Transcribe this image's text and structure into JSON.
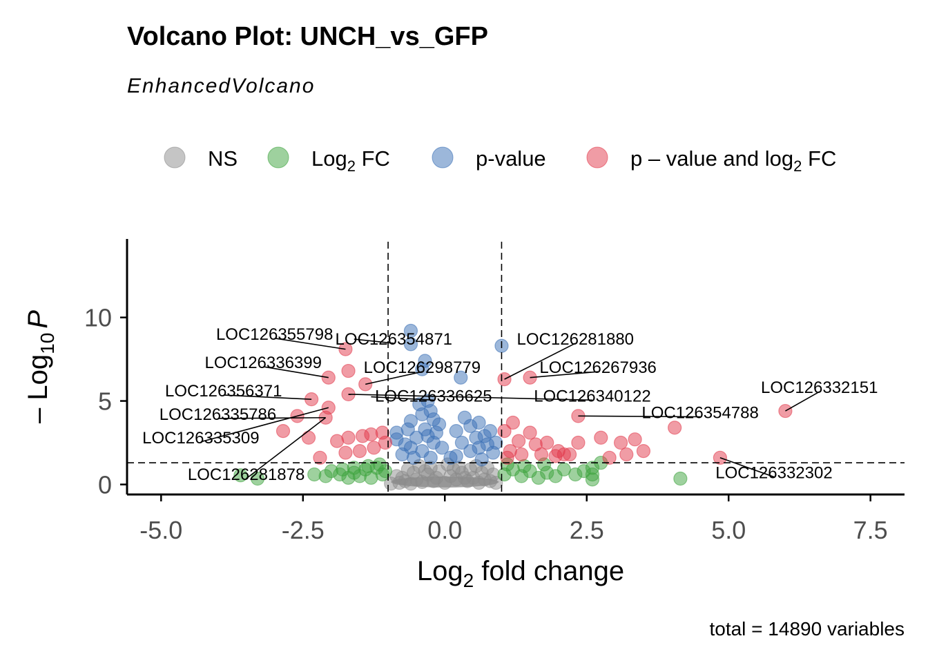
{
  "chart_data": {
    "type": "scatter",
    "title": "Volcano Plot: UNCH_vs_GFP",
    "subtitle": "EnhancedVolcano",
    "caption": "total = 14890 variables",
    "xlabel_main": "Log",
    "xlabel_sub": "2",
    "xlabel_rest": " fold change",
    "ylabel_pre": "– Log",
    "ylabel_sub": "10",
    "ylabel_italic": "P",
    "xlim": [
      -5.6,
      8.1
    ],
    "ylim": [
      -0.6,
      14.7
    ],
    "x_ticks": [
      -5.0,
      -2.5,
      0.0,
      2.5,
      5.0,
      7.5
    ],
    "x_tick_labels": [
      "-5.0",
      "-2.5",
      "0.0",
      "2.5",
      "5.0",
      "7.5"
    ],
    "y_ticks": [
      0,
      5,
      10
    ],
    "y_tick_labels": [
      "0",
      "5",
      "10"
    ],
    "fc_cutoff": 1.0,
    "p_cutoff_log10": 1.3,
    "legend_position": "top",
    "colors": {
      "NS": "#8c8c8c",
      "FC": "#3da33d",
      "P": "#3a6fb5",
      "FC_P": "#e2394b"
    },
    "legend": [
      {
        "key": "NS",
        "label": "NS"
      },
      {
        "key": "FC",
        "label": "Log",
        "sub": "2",
        "rest": " FC"
      },
      {
        "key": "P",
        "label": "p-value"
      },
      {
        "key": "FC_P",
        "label": "p – value and log",
        "sub": "2",
        "rest": " FC"
      }
    ],
    "series": {
      "NS": [
        [
          -0.95,
          0.05
        ],
        [
          -0.8,
          0.1
        ],
        [
          -0.7,
          0.2
        ],
        [
          -0.6,
          0.05
        ],
        [
          -0.5,
          0.3
        ],
        [
          -0.4,
          0.15
        ],
        [
          -0.3,
          0.6
        ],
        [
          -0.2,
          0.2
        ],
        [
          -0.1,
          0.8
        ],
        [
          0.0,
          0.1
        ],
        [
          0.1,
          0.5
        ],
        [
          0.2,
          0.3
        ],
        [
          0.3,
          0.7
        ],
        [
          0.4,
          0.2
        ],
        [
          0.5,
          0.4
        ],
        [
          0.6,
          0.1
        ],
        [
          0.7,
          0.3
        ],
        [
          0.8,
          0.2
        ],
        [
          0.9,
          0.1
        ],
        [
          -0.85,
          0.5
        ],
        [
          -0.65,
          0.9
        ],
        [
          -0.45,
          1.1
        ],
        [
          -0.25,
          1.0
        ],
        [
          0.05,
          1.2
        ],
        [
          0.25,
          1.0
        ],
        [
          0.45,
          0.9
        ],
        [
          0.65,
          0.7
        ],
        [
          0.85,
          0.6
        ],
        [
          -0.55,
          0.7
        ],
        [
          0.35,
          0.4
        ],
        [
          -0.15,
          0.4
        ],
        [
          0.15,
          0.9
        ],
        [
          -0.35,
          0.8
        ],
        [
          0.55,
          1.1
        ],
        [
          0.75,
          1.0
        ],
        [
          -0.75,
          0.4
        ]
      ],
      "FC": [
        [
          -3.6,
          0.55
        ],
        [
          -3.3,
          0.35
        ],
        [
          -2.1,
          0.5
        ],
        [
          -2.0,
          0.8
        ],
        [
          -1.85,
          0.6
        ],
        [
          -1.7,
          0.4
        ],
        [
          -1.6,
          0.7
        ],
        [
          -1.5,
          0.5
        ],
        [
          -1.4,
          0.9
        ],
        [
          -1.3,
          0.4
        ],
        [
          -1.2,
          1.0
        ],
        [
          -1.1,
          0.6
        ],
        [
          -1.05,
          0.8
        ],
        [
          -1.15,
          1.2
        ],
        [
          -1.35,
          1.1
        ],
        [
          -1.6,
          1.0
        ],
        [
          -1.8,
          0.9
        ],
        [
          -2.3,
          0.6
        ],
        [
          1.05,
          0.6
        ],
        [
          1.2,
          0.9
        ],
        [
          1.35,
          0.5
        ],
        [
          1.5,
          0.8
        ],
        [
          1.65,
          0.4
        ],
        [
          1.8,
          0.7
        ],
        [
          1.95,
          0.5
        ],
        [
          2.1,
          0.9
        ],
        [
          2.3,
          0.6
        ],
        [
          2.45,
          0.8
        ],
        [
          2.6,
          0.3
        ],
        [
          2.6,
          0.6
        ],
        [
          2.6,
          1.0
        ],
        [
          2.75,
          1.3
        ],
        [
          1.1,
          1.2
        ],
        [
          1.4,
          1.1
        ],
        [
          1.75,
          1.2
        ],
        [
          4.15,
          0.35
        ]
      ],
      "P": [
        [
          -0.6,
          8.4
        ],
        [
          -0.6,
          9.2
        ],
        [
          -0.35,
          7.4
        ],
        [
          -0.4,
          6.9
        ],
        [
          0.28,
          6.4
        ],
        [
          1.0,
          8.3
        ],
        [
          -0.85,
          3.1
        ],
        [
          -0.85,
          2.7
        ],
        [
          -0.6,
          3.8
        ],
        [
          -0.4,
          4.2
        ],
        [
          -0.3,
          5.0
        ],
        [
          -0.2,
          3.9
        ],
        [
          -0.45,
          4.8
        ],
        [
          -0.35,
          3.3
        ],
        [
          -0.2,
          2.5
        ],
        [
          -0.7,
          2.4
        ],
        [
          -0.6,
          2.2
        ],
        [
          -0.5,
          2.8
        ],
        [
          -0.4,
          2.0
        ],
        [
          -0.3,
          2.9
        ],
        [
          -0.15,
          3.1
        ],
        [
          -0.05,
          2.2
        ],
        [
          0.2,
          3.2
        ],
        [
          0.35,
          4.0
        ],
        [
          0.45,
          3.5
        ],
        [
          0.6,
          3.7
        ],
        [
          0.7,
          2.9
        ],
        [
          0.8,
          3.2
        ],
        [
          0.9,
          2.5
        ],
        [
          0.85,
          1.9
        ],
        [
          0.6,
          2.2
        ],
        [
          0.45,
          2.0
        ],
        [
          0.3,
          2.5
        ],
        [
          0.2,
          1.7
        ],
        [
          -0.25,
          1.6
        ],
        [
          -0.55,
          1.6
        ],
        [
          -0.75,
          1.8
        ],
        [
          0.1,
          1.6
        ],
        [
          0.65,
          1.5
        ],
        [
          -0.65,
          3.3
        ],
        [
          -0.25,
          4.4
        ],
        [
          -0.1,
          3.6
        ],
        [
          0.55,
          2.8
        ],
        [
          0.75,
          2.4
        ]
      ],
      "FC_P": [
        [
          -1.75,
          8.1
        ],
        [
          -1.7,
          6.8
        ],
        [
          -2.05,
          6.4
        ],
        [
          -1.4,
          6.0
        ],
        [
          -1.7,
          5.4
        ],
        [
          -2.35,
          5.1
        ],
        [
          -2.05,
          4.6
        ],
        [
          -2.6,
          4.1
        ],
        [
          -2.1,
          4.0
        ],
        [
          -2.85,
          3.2
        ],
        [
          -2.4,
          2.8
        ],
        [
          -2.2,
          1.6
        ],
        [
          -1.9,
          2.6
        ],
        [
          -1.75,
          1.9
        ],
        [
          -1.7,
          2.8
        ],
        [
          -1.45,
          2.9
        ],
        [
          -1.3,
          3.0
        ],
        [
          -1.25,
          2.2
        ],
        [
          -1.1,
          3.1
        ],
        [
          -1.05,
          2.5
        ],
        [
          -1.5,
          2.0
        ],
        [
          1.05,
          6.3
        ],
        [
          1.5,
          6.4
        ],
        [
          2.35,
          4.1
        ],
        [
          1.05,
          3.2
        ],
        [
          1.2,
          3.7
        ],
        [
          1.3,
          2.6
        ],
        [
          1.5,
          3.1
        ],
        [
          1.6,
          2.4
        ],
        [
          1.8,
          2.5
        ],
        [
          2.0,
          2.0
        ],
        [
          2.2,
          1.8
        ],
        [
          2.35,
          2.5
        ],
        [
          2.75,
          2.8
        ],
        [
          2.9,
          1.6
        ],
        [
          3.1,
          2.5
        ],
        [
          3.2,
          1.8
        ],
        [
          3.35,
          2.7
        ],
        [
          3.5,
          2.0
        ],
        [
          4.05,
          3.4
        ],
        [
          4.85,
          1.6
        ],
        [
          6.0,
          4.4
        ],
        [
          1.15,
          2.0
        ],
        [
          1.35,
          1.8
        ],
        [
          1.7,
          1.8
        ],
        [
          1.95,
          1.7
        ],
        [
          2.1,
          1.8
        ],
        [
          1.1,
          1.6
        ]
      ]
    },
    "annotations": [
      {
        "label": "LOC126355798",
        "point": [
          -1.75,
          8.1
        ],
        "label_pos": [
          -3.0,
          9.0
        ],
        "anchor": "middle"
      },
      {
        "label": "LOC126354871",
        "point": [
          -1.6,
          8.7
        ],
        "label_pos": [
          -0.9,
          8.7
        ],
        "anchor": "middle"
      },
      {
        "label": "LOC126281880",
        "point": [
          1.05,
          6.3
        ],
        "label_pos": [
          2.3,
          8.7
        ],
        "anchor": "middle"
      },
      {
        "label": "LOC126336399",
        "point": [
          -2.05,
          6.4
        ],
        "label_pos": [
          -3.2,
          7.3
        ],
        "anchor": "middle"
      },
      {
        "label": "LOC126298779",
        "point": [
          -1.4,
          6.0
        ],
        "label_pos": [
          -0.4,
          7.0
        ],
        "anchor": "middle"
      },
      {
        "label": "LOC126267936",
        "point": [
          1.5,
          6.4
        ],
        "label_pos": [
          2.7,
          7.0
        ],
        "anchor": "middle"
      },
      {
        "label": "LOC126356371",
        "point": [
          -2.35,
          5.1
        ],
        "label_pos": [
          -3.9,
          5.6
        ],
        "anchor": "middle"
      },
      {
        "label": "LOC126340122",
        "point": [
          -1.7,
          5.4
        ],
        "label_pos": [
          2.6,
          5.3
        ],
        "anchor": "middle"
      },
      {
        "label": "LOC126336625",
        "point": [
          -1.3,
          5.25
        ],
        "label_pos": [
          -0.2,
          5.3
        ],
        "anchor": "middle"
      },
      {
        "label": "LOC126332151",
        "point": [
          6.0,
          4.4
        ],
        "label_pos": [
          6.6,
          5.8
        ],
        "anchor": "middle"
      },
      {
        "label": "LOC126335786",
        "point": [
          -2.1,
          4.0
        ],
        "label_pos": [
          -4.0,
          4.2
        ],
        "anchor": "middle"
      },
      {
        "label": "LOC126354788",
        "point": [
          2.35,
          4.1
        ],
        "label_pos": [
          4.5,
          4.3
        ],
        "anchor": "middle"
      },
      {
        "label": "LOC126335309",
        "point": [
          -2.05,
          4.6
        ],
        "label_pos": [
          -4.3,
          2.8
        ],
        "anchor": "middle"
      },
      {
        "label": "LOC126281878",
        "point": [
          -2.1,
          4.0
        ],
        "label_pos": [
          -3.5,
          0.6
        ],
        "anchor": "middle"
      },
      {
        "label": "LOC126332302",
        "point": [
          4.85,
          1.6
        ],
        "label_pos": [
          5.8,
          0.7
        ],
        "anchor": "middle"
      }
    ]
  }
}
